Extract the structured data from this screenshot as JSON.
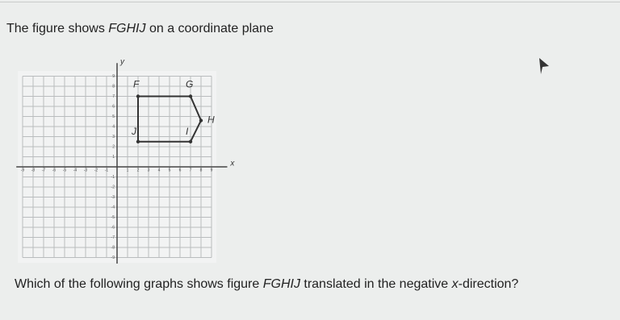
{
  "question": {
    "intro": [
      "The figure shows ",
      "FGHIJ",
      " on a coordinate plane"
    ],
    "prompt": [
      "Which of the following graphs shows figure ",
      "FGHIJ",
      " translated in the negative ",
      "x",
      "-direction?"
    ]
  },
  "figure": {
    "axis_labels": {
      "x": "x",
      "y": "y"
    },
    "x_ticks": [
      -9,
      -8,
      -7,
      -6,
      -5,
      -4,
      -3,
      -2,
      -1,
      1,
      2,
      3,
      4,
      5,
      6,
      7,
      8,
      9
    ],
    "y_ticks": [
      9,
      8,
      7,
      6,
      5,
      4,
      3,
      2,
      1,
      -1,
      -2,
      -3,
      -4,
      -5,
      -6,
      -7,
      -8,
      -9
    ],
    "vertex_labels": {
      "F": "F",
      "G": "G",
      "H": "H",
      "I": "I",
      "J": "J"
    }
  }
}
